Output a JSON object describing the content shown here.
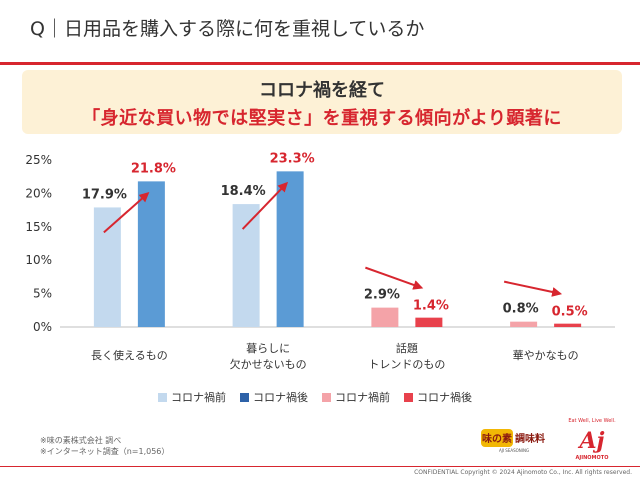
{
  "header": {
    "question": "Q｜日用品を購入する際に何を重視しているか"
  },
  "banner": {
    "line1": "コロナ禍を経て",
    "line2": "「身近な買い物では堅実さ」を重視する傾向がより顕著に"
  },
  "chart_data": {
    "type": "bar",
    "title": "",
    "xlabel": "",
    "ylabel": "",
    "ylim": [
      0,
      25
    ],
    "yticks": [
      "0%",
      "5%",
      "10%",
      "15%",
      "20%",
      "25%"
    ],
    "ytick_values": [
      0,
      5,
      10,
      15,
      20,
      25
    ],
    "categories": [
      {
        "line1": "長く使えるもの",
        "line2": ""
      },
      {
        "line1": "暮らしに",
        "line2": "欠かせないもの"
      },
      {
        "line1": "話題",
        "line2": "トレンドのもの"
      },
      {
        "line1": "華やかなもの",
        "line2": ""
      }
    ],
    "series": [
      {
        "name": "コロナ禍前",
        "period": "before",
        "values": [
          17.9,
          18.4,
          2.9,
          0.8
        ],
        "labels": [
          "17.9%",
          "18.4%",
          "2.9%",
          "0.8%"
        ]
      },
      {
        "name": "コロナ禍後",
        "period": "after",
        "values": [
          21.8,
          23.3,
          1.4,
          0.5
        ],
        "labels": [
          "21.8%",
          "23.3%",
          "1.4%",
          "0.5%"
        ]
      }
    ],
    "colors": {
      "before_up": "#c3d9ee",
      "after_up": "#5b9bd5",
      "before_down": "#f4a3a8",
      "after_down": "#e8414c",
      "arrow": "#d7262f",
      "label_before": "#333333",
      "label_after": "#d7262f"
    }
  },
  "legend": [
    {
      "label": "コロナ禍前",
      "color": "#c3d9ee"
    },
    {
      "label": "コロナ禍後",
      "color": "#2e62a8"
    },
    {
      "label": "コロナ禍前",
      "color": "#f4a3a8"
    },
    {
      "label": "コロナ禍後",
      "color": "#e8414c"
    }
  ],
  "notes": {
    "line1": "※味の素株式会社 調べ",
    "line2": "※インターネット調査（n=1,056）"
  },
  "logos": {
    "aji_main": "味の素",
    "aji_sub": "調味料",
    "aji_small": "AJI SEASONING",
    "ajinomoto_slogan": "Eat Well, Live Well.",
    "ajinomoto_mark": "Aj",
    "ajinomoto_name": "AJINOMOTO"
  },
  "footer": {
    "text": "CONFIDENTIAL   Copyright © 2024 Ajinomoto Co., Inc. All rights reserved."
  }
}
